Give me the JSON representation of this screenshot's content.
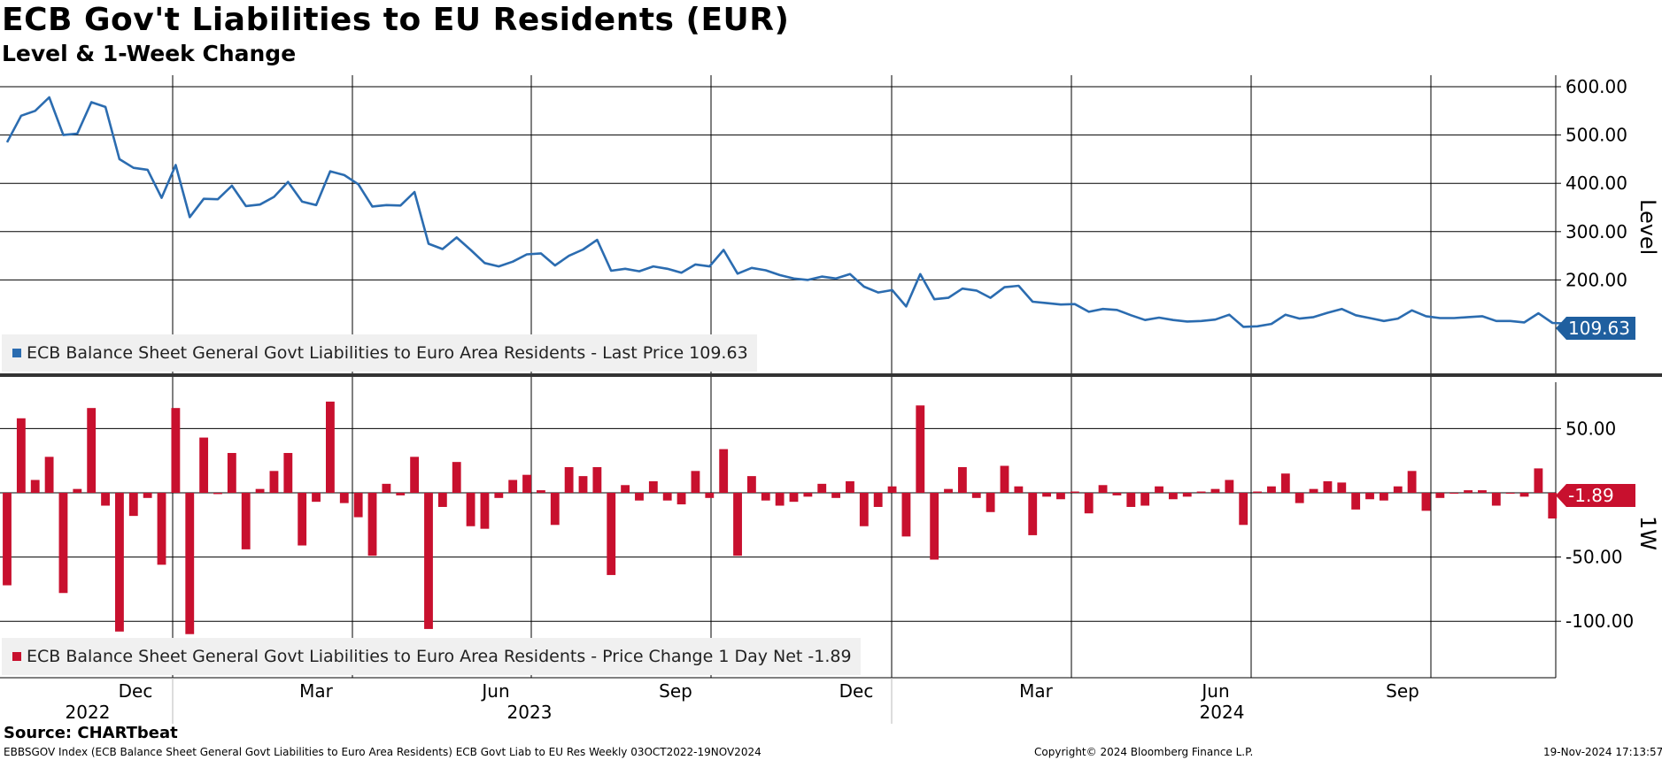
{
  "header": {
    "title": "ECB Gov't Liabilities to EU Residents (EUR)",
    "subtitle": "Level & 1-Week Change"
  },
  "footer": {
    "source": "Source: CHARTbeat",
    "index_info": "EBBSGOV Index (ECB Balance Sheet General Govt Liabilities to Euro Area Residents) ECB Govt Liab to EU Res  Weekly 03OCT2022-19NOV2024",
    "copyright": "Copyright© 2024 Bloomberg Finance L.P.",
    "timestamp": "19-Nov-2024 17:13:57"
  },
  "colors": {
    "level_line": "#2b6cb0",
    "change_bar": "#c8102e",
    "level_label_bg": "#1f5f9f",
    "change_label_bg": "#c8102e",
    "grid": "#000000"
  },
  "chart_data": [
    {
      "type": "line",
      "panel": "top",
      "ylabel": "Level",
      "ylim": [
        90,
        630
      ],
      "yticks": [
        600,
        500,
        400,
        300,
        200
      ],
      "ytick_labels": [
        "600.00",
        "500.00",
        "400.00",
        "300.00",
        "200.00"
      ],
      "last_value_label": "109.63",
      "legend": "ECB Balance Sheet General Govt Liabilities to Euro Area Residents - Last Price 109.63",
      "x_start": "2022-10-03",
      "x_end": "2024-11-19",
      "frequency": "weekly",
      "series": [
        {
          "name": "ECB Balance Sheet General Govt Liabilities to Euro Area Residents - Last Price 109.63",
          "values": [
            485,
            540,
            550,
            578,
            500,
            503,
            568,
            558,
            450,
            432,
            428,
            370,
            438,
            330,
            368,
            367,
            395,
            353,
            356,
            372,
            403,
            362,
            355,
            425,
            417,
            398,
            352,
            355,
            354,
            382,
            275,
            264,
            288,
            262,
            235,
            228,
            238,
            253,
            255,
            230,
            250,
            263,
            283,
            219,
            223,
            218,
            228,
            223,
            215,
            232,
            228,
            262,
            213,
            225,
            220,
            210,
            203,
            200,
            207,
            203,
            212,
            186,
            174,
            179,
            145,
            212,
            160,
            163,
            182,
            178,
            163,
            185,
            188,
            155,
            152,
            149,
            150,
            134,
            140,
            138,
            127,
            117,
            122,
            117,
            114,
            115,
            118,
            128,
            103,
            104,
            109,
            128,
            120,
            123,
            132,
            140,
            127,
            121,
            115,
            120,
            137,
            125,
            121,
            121,
            123,
            125,
            115,
            115,
            112,
            131,
            111,
            109.63
          ]
        }
      ]
    },
    {
      "type": "bar",
      "panel": "bottom",
      "ylabel": "1W",
      "ylim": [
        -142,
        78
      ],
      "yticks": [
        50,
        -50,
        -100
      ],
      "ytick_labels": [
        "50.00",
        "-50.00",
        "-100.00"
      ],
      "last_value_label": "-1.89",
      "legend": "ECB Balance Sheet General Govt Liabilities to Euro Area Residents - Price Change 1 Day Net -1.89",
      "series": [
        {
          "name": "ECB Balance Sheet General Govt Liabilities to Euro Area Residents - Price Change 1 Day Net -1.89",
          "values": [
            -72,
            58,
            10,
            28,
            -78,
            3,
            66,
            -10,
            -108,
            -18,
            -4,
            -56,
            66,
            -110,
            43,
            -1,
            31,
            -44,
            3,
            17,
            31,
            -41,
            -7,
            71,
            -8,
            -19,
            -49,
            7,
            -2,
            28,
            -106,
            -11,
            24,
            -26,
            -28,
            -4,
            10,
            14,
            2,
            -25,
            20,
            13,
            20,
            -64,
            6,
            -6,
            9,
            -6,
            -9,
            17,
            -4,
            34,
            -49,
            13,
            -6,
            -10,
            -7,
            -3,
            7,
            -4,
            9,
            -26,
            -11,
            5,
            -34,
            68,
            -52,
            3,
            20,
            -4,
            -15,
            21,
            5,
            -33,
            -3,
            -5,
            1,
            -16,
            6,
            -2,
            -11,
            -10,
            5,
            -5,
            -3,
            1,
            3,
            10,
            -25,
            1,
            5,
            15,
            -8,
            3,
            9,
            8,
            -13,
            -5,
            -6,
            5,
            17,
            -14,
            -4,
            0,
            2,
            2,
            -10,
            0,
            -3,
            19,
            -20,
            -1.89
          ]
        }
      ]
    }
  ],
  "x_axis": {
    "month_labels": [
      "Dec",
      "Mar",
      "Jun",
      "Sep",
      "Dec",
      "Mar",
      "Jun",
      "Sep"
    ],
    "year_labels": [
      "2022",
      "2023",
      "2024"
    ]
  }
}
